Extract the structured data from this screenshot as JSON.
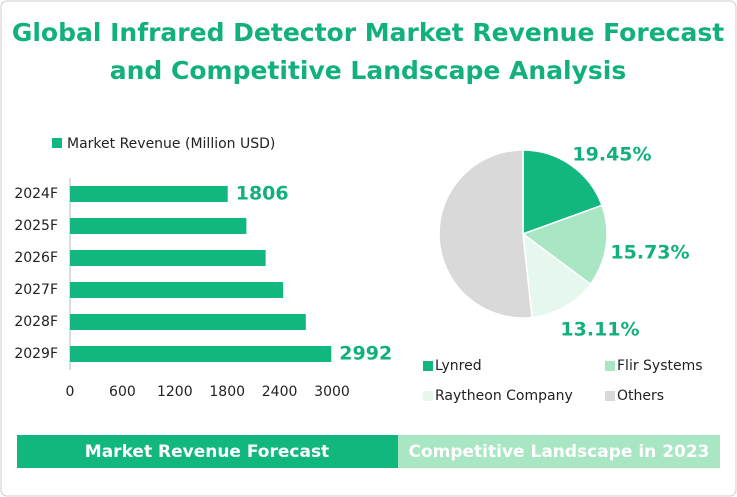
{
  "title": [
    "Global Infrared Detector Market Revenue Forecast",
    "and Competitive Landscape Analysis"
  ],
  "chart_data": [
    {
      "type": "bar",
      "orientation": "horizontal",
      "legend": "Market Revenue (Million USD)",
      "color": "#12b77e",
      "categories": [
        "2024F",
        "2025F",
        "2026F",
        "2027F",
        "2028F",
        "2029F"
      ],
      "values": [
        1806,
        2020,
        2240,
        2440,
        2700,
        2992
      ],
      "value_labels": [
        "1806",
        null,
        null,
        null,
        null,
        "2992"
      ],
      "xlim": [
        0,
        3000
      ],
      "xticks": [
        0,
        600,
        1200,
        1800,
        2400,
        3000
      ]
    },
    {
      "type": "pie",
      "categories": [
        "Lynred",
        "Flir Systems",
        "Raytheon Company",
        "Others"
      ],
      "values": [
        19.45,
        15.73,
        13.11,
        51.71
      ],
      "value_labels": [
        "19.45%",
        "15.73%",
        "13.11%",
        null
      ],
      "colors": [
        "#12b77e",
        "#a8e6c4",
        "#e6f7ee",
        "#d9d9d9"
      ]
    }
  ],
  "footer": [
    "Market Revenue Forecast",
    "Competitive Landscape in 2023"
  ]
}
